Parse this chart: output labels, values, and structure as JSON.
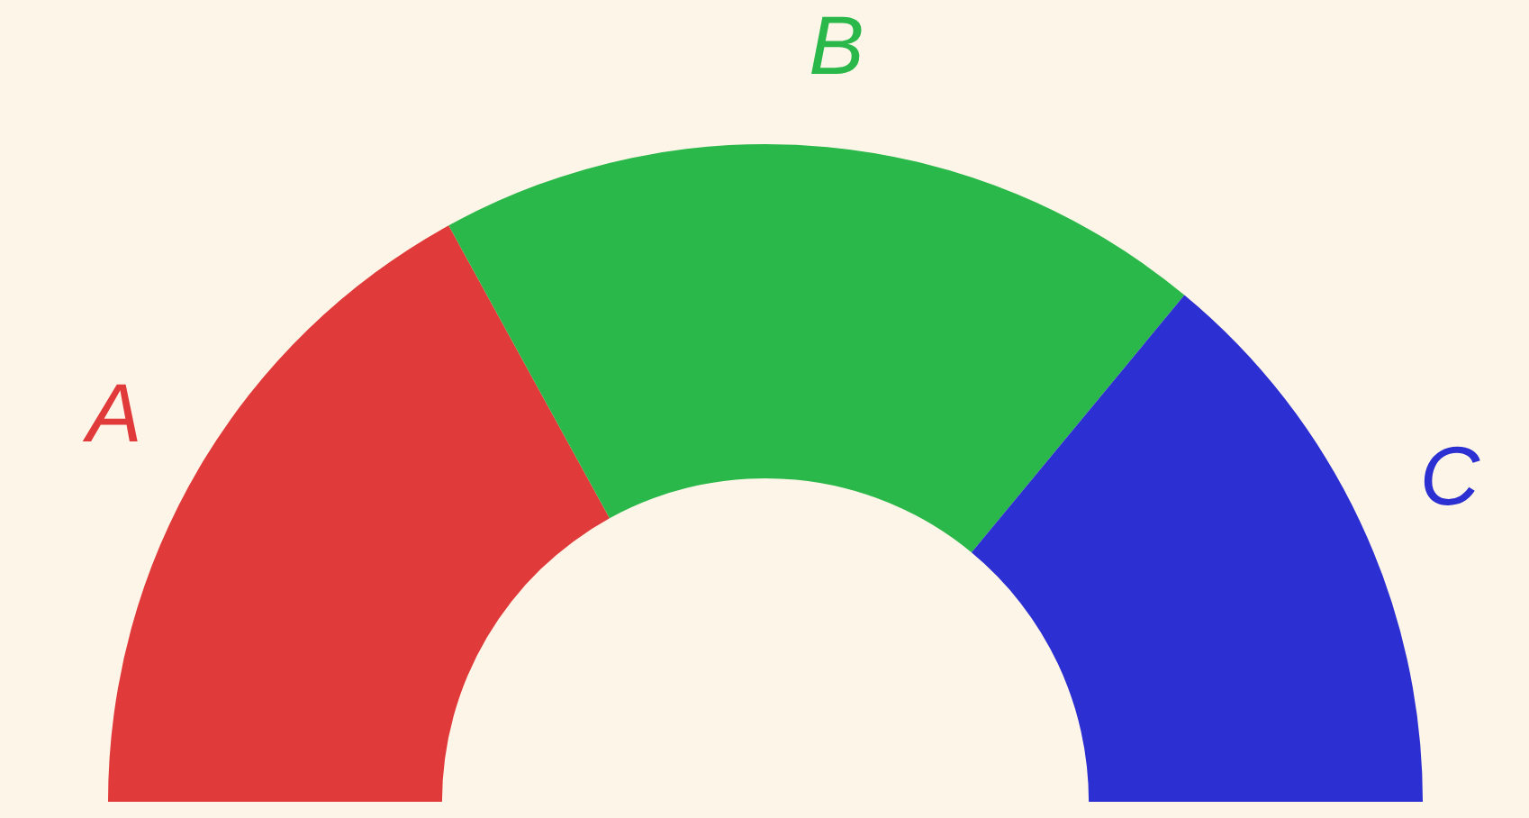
{
  "chart_data": {
    "type": "donut",
    "categories": [
      "A",
      "B",
      "C"
    ],
    "values": [
      34,
      38,
      28
    ],
    "colors": [
      "#e03a3a",
      "#2bb84a",
      "#2c2fd1"
    ]
  }
}
